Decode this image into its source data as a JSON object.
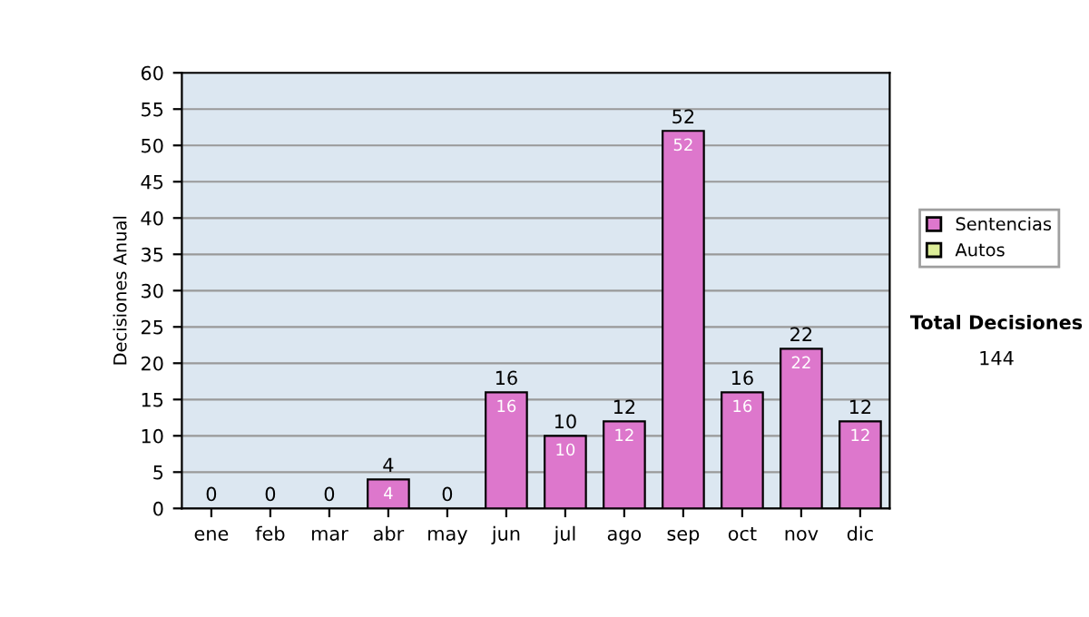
{
  "chart_data": {
    "type": "bar",
    "ylabel": "Decisiones Anual",
    "categories": [
      "ene",
      "feb",
      "mar",
      "abr",
      "may",
      "jun",
      "jul",
      "ago",
      "sep",
      "oct",
      "nov",
      "dic"
    ],
    "stacked": true,
    "series": [
      {
        "name": "Sentencias",
        "color": "#dd77cc",
        "values": [
          0,
          0,
          0,
          4,
          0,
          16,
          10,
          12,
          52,
          16,
          22,
          12
        ],
        "value_labels": [
          null,
          null,
          null,
          "4",
          null,
          "16",
          "10",
          "12",
          "52",
          "16",
          "22",
          "12"
        ]
      },
      {
        "name": "Autos",
        "color": "#ddee99",
        "values": [
          0,
          0,
          0,
          0,
          0,
          0,
          0,
          0,
          0,
          0,
          0,
          0
        ]
      }
    ],
    "totals": [
      "0",
      "0",
      "0",
      "4",
      "0",
      "16",
      "10",
      "12",
      "52",
      "16",
      "22",
      "12"
    ],
    "ylim": [
      0,
      60
    ],
    "yticks": [
      0,
      5,
      10,
      15,
      20,
      25,
      30,
      35,
      40,
      45,
      50,
      55,
      60
    ],
    "grid": "y",
    "legend": "right",
    "annotations": [
      "Total Decisiones",
      "144"
    ]
  }
}
